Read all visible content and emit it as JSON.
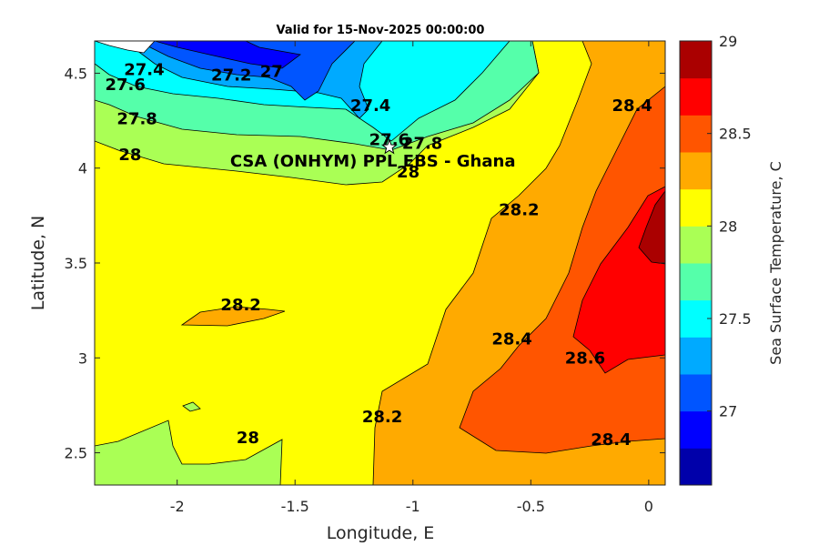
{
  "chart_data": {
    "type": "contour",
    "title": "Valid for 15-Nov-2025 00:00:00",
    "xlabel": "Longitude, E",
    "ylabel": "Latitude, N",
    "xlim": [
      -2.35,
      0.07
    ],
    "ylim": [
      2.33,
      4.67
    ],
    "xticks": [
      -2,
      -1.5,
      -1,
      -0.5,
      0
    ],
    "xtick_labels": [
      "-2",
      "-1.5",
      "-1",
      "-0.5",
      "0"
    ],
    "yticks": [
      2.5,
      3,
      3.5,
      4,
      4.5
    ],
    "ytick_labels": [
      "2.5",
      "3",
      "3.5",
      "4",
      "4.5"
    ],
    "colorbar": {
      "label": "Sea Surface Temperature, C",
      "range": [
        26.6,
        29.0
      ],
      "step": 0.2,
      "ticks": [
        27,
        27.5,
        28,
        28.5,
        29
      ],
      "tick_labels": [
        "27",
        "27.5",
        "28",
        "28.5",
        "29"
      ],
      "colors": [
        "#0000AA",
        "#0000FF",
        "#0055FF",
        "#00AAFF",
        "#00FFFF",
        "#55FFAA",
        "#AAFF55",
        "#FFFF00",
        "#FFAA00",
        "#FF5500",
        "#FF0000",
        "#AA0000"
      ]
    },
    "contour_labels": [
      {
        "text": "27.4",
        "lon": -2.14,
        "lat": 4.52
      },
      {
        "text": "27.6",
        "lon": -2.22,
        "lat": 4.44
      },
      {
        "text": "27.2",
        "lon": -1.77,
        "lat": 4.49
      },
      {
        "text": "27",
        "lon": -1.6,
        "lat": 4.51
      },
      {
        "text": "27.4",
        "lon": -1.18,
        "lat": 4.33
      },
      {
        "text": "27.8",
        "lon": -2.17,
        "lat": 4.26
      },
      {
        "text": "28",
        "lon": -2.2,
        "lat": 4.07
      },
      {
        "text": "27.6",
        "lon": -1.1,
        "lat": 4.15
      },
      {
        "text": "27.8",
        "lon": -0.96,
        "lat": 4.13
      },
      {
        "text": "28",
        "lon": -1.02,
        "lat": 3.98
      },
      {
        "text": "28.2",
        "lon": -0.55,
        "lat": 3.78
      },
      {
        "text": "28.4",
        "lon": -0.07,
        "lat": 4.33
      },
      {
        "text": "28.2",
        "lon": -1.73,
        "lat": 3.28
      },
      {
        "text": "28.4",
        "lon": -0.58,
        "lat": 3.1
      },
      {
        "text": "28.6",
        "lon": -0.27,
        "lat": 3.0
      },
      {
        "text": "28.2",
        "lon": -1.13,
        "lat": 2.69
      },
      {
        "text": "28",
        "lon": -1.7,
        "lat": 2.58
      },
      {
        "text": "28.4",
        "lon": -0.16,
        "lat": 2.57
      }
    ],
    "annotation": {
      "marker": "star",
      "lon": -1.1,
      "lat": 4.11,
      "text": "CSA (ONHYM) PPL EBS  - Ghana"
    }
  }
}
